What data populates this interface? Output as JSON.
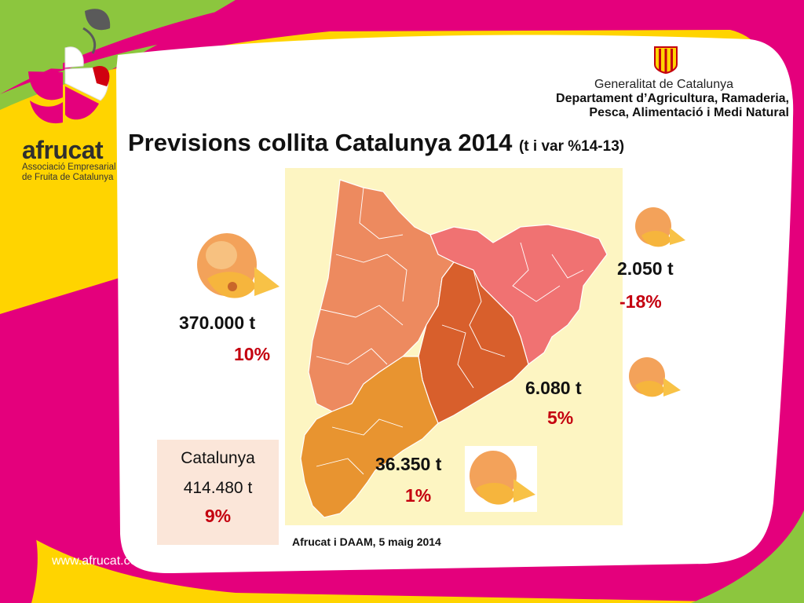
{
  "slide": {
    "title": "Previsions collita Catalunya 2014",
    "title_sub": "(t i var %14-13)",
    "source_note": "Afrucat i DAAM, 5 maig 2014",
    "url": "www.afrucat.com"
  },
  "logos": {
    "afrucat_name": "afrucat",
    "afrucat_sub_line1": "Associació Empresarial",
    "afrucat_sub_line2": "de Fruita de Catalunya",
    "gov_line1": "Generalitat de Catalunya",
    "gov_line2": "Departament d’Agricultura, Ramaderia,",
    "gov_line3": "Pesca, Alimentació i Medi Natural"
  },
  "regions": [
    {
      "name": "west",
      "tonnes": "370.000 t",
      "variation": "10%"
    },
    {
      "name": "northeast",
      "tonnes": "2.050 t",
      "variation": "-18%"
    },
    {
      "name": "central",
      "tonnes": "6.080 t",
      "variation": "5%"
    },
    {
      "name": "south",
      "tonnes": "36.350 t",
      "variation": "1%"
    }
  ],
  "total": {
    "label": "Catalunya",
    "tonnes": "414.480 t",
    "variation": "9%"
  },
  "colors": {
    "magenta": "#e4007c",
    "yellow": "#ffd400",
    "green": "#8cc63e",
    "map_bg": "#fdf5c2",
    "region_west": "#ed8a5f",
    "region_northeast": "#f07272",
    "region_central": "#d85f2c",
    "region_south": "#e89430",
    "variation_red": "#c4000f"
  }
}
